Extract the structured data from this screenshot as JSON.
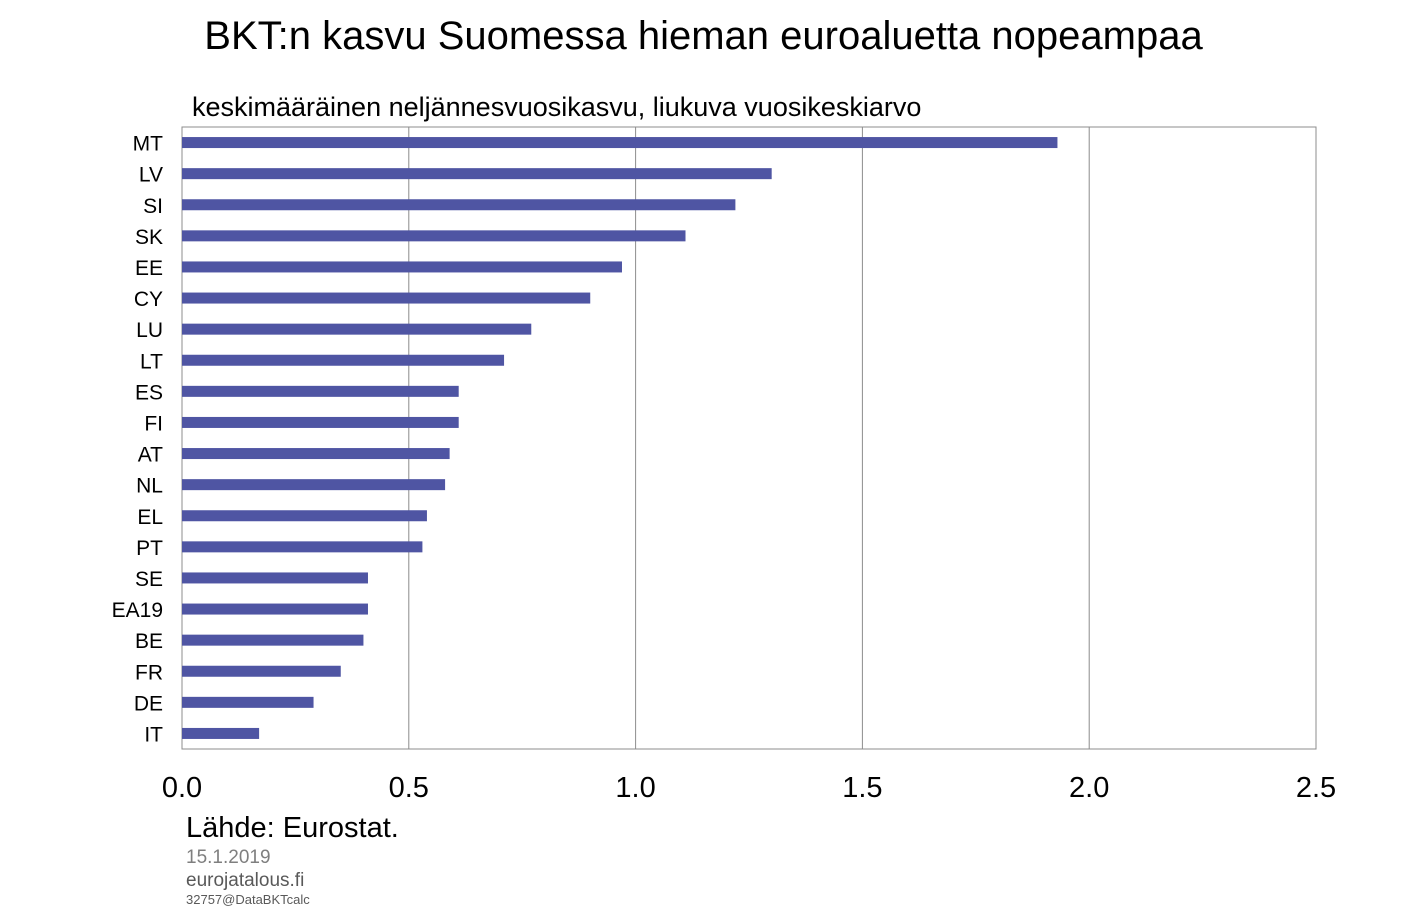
{
  "chart_data": {
    "type": "bar",
    "orientation": "horizontal",
    "title": "BKT:n kasvu Suomessa hieman euroaluetta nopeampaa",
    "subtitle": "keskimääräinen neljännesvuosikasvu,  liukuva vuosikeskiarvo",
    "categories": [
      "MT",
      "LV",
      "SI",
      "SK",
      "EE",
      "CY",
      "LU",
      "LT",
      "ES",
      "FI",
      "AT",
      "NL",
      "EL",
      "PT",
      "SE",
      "EA19",
      "BE",
      "FR",
      "DE",
      "IT"
    ],
    "values": [
      1.93,
      1.3,
      1.22,
      1.11,
      0.97,
      0.9,
      0.77,
      0.71,
      0.61,
      0.61,
      0.59,
      0.58,
      0.54,
      0.53,
      0.41,
      0.41,
      0.4,
      0.35,
      0.29,
      0.17
    ],
    "xlim": [
      0,
      2.5
    ],
    "xticks": [
      "0.0",
      "0.5",
      "1.0",
      "1.5",
      "2.0",
      "2.5"
    ],
    "grid": "vertical",
    "bar_color": "#4f55a3",
    "xlabel": "",
    "ylabel": ""
  },
  "footer": {
    "source": "Lähde: Eurostat.",
    "date": "15.1.2019",
    "site": "eurojatalous.fi",
    "code": "32757@DataBKTcalc"
  }
}
